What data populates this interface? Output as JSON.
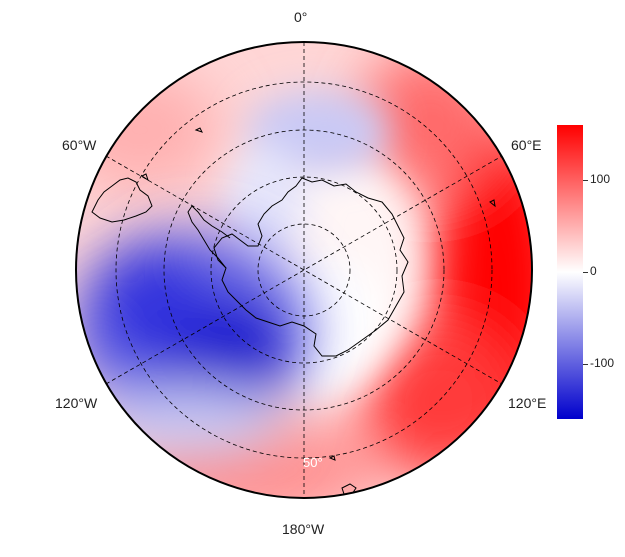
{
  "map": {
    "projection": "south-polar-stereographic",
    "longitude_labels": {
      "top": "0°",
      "upper_left": "60°W",
      "upper_right": "60°E",
      "lower_left": "120°W",
      "lower_right": "120°E",
      "bottom": "180°W"
    },
    "latitude_label": "50°",
    "colors": {
      "positive": "#ff0000",
      "neutral": "#ffffff",
      "negative": "#0000cc",
      "land_outline": "#000000",
      "graticule": "#000000"
    }
  },
  "colorbar": {
    "min": -160,
    "max": 160,
    "ticks": [
      "100",
      "0",
      "-100"
    ],
    "tick_values": [
      100,
      0,
      -100
    ]
  }
}
